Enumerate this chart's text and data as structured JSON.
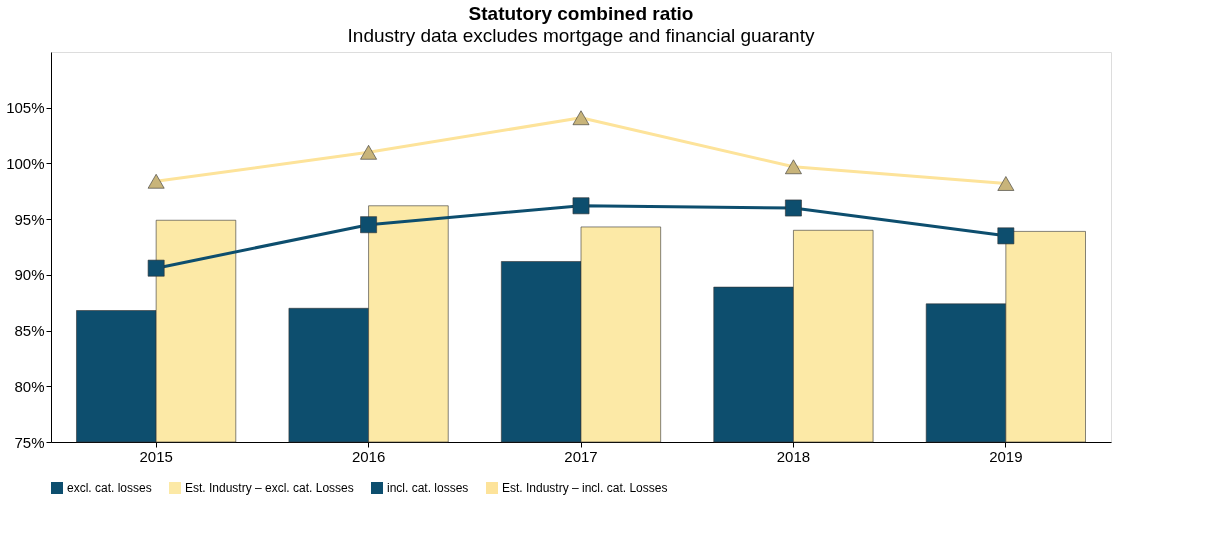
{
  "chart_data": {
    "type": "bar",
    "title": "Statutory combined ratio",
    "subtitle": "Industry data excludes mortgage and financial guaranty",
    "categories": [
      "2015",
      "2016",
      "2017",
      "2018",
      "2019"
    ],
    "series": [
      {
        "name": "excl. cat. losses",
        "color": "#0d4e6e",
        "values": [
          86.8,
          87.0,
          91.2,
          88.9,
          87.4
        ]
      },
      {
        "name": "Est. Industry – excl. cat. Losses",
        "color": "#fce9a6",
        "values": [
          94.9,
          96.2,
          94.3,
          94.0,
          93.9
        ]
      },
      {
        "name": "incl. cat. losses",
        "type": "line",
        "marker": "square",
        "color": "#0d4e6e",
        "values": [
          90.6,
          94.5,
          96.2,
          96.0,
          93.5
        ]
      },
      {
        "name": "Est. Industry – incl. cat. Losses",
        "type": "line",
        "marker": "triangle",
        "color": "#fde39a",
        "values": [
          98.4,
          101.0,
          104.1,
          99.7,
          98.2
        ]
      }
    ],
    "ylim": [
      75,
      110
    ],
    "yticks": [
      {
        "value": 75,
        "label": "75%"
      },
      {
        "value": 80,
        "label": "80%"
      },
      {
        "value": 85,
        "label": "85%"
      },
      {
        "value": 90,
        "label": "90%"
      },
      {
        "value": 95,
        "label": "95%"
      },
      {
        "value": 100,
        "label": "100%"
      },
      {
        "value": 105,
        "label": "105%"
      }
    ],
    "grid": false,
    "legend": "bottom"
  }
}
